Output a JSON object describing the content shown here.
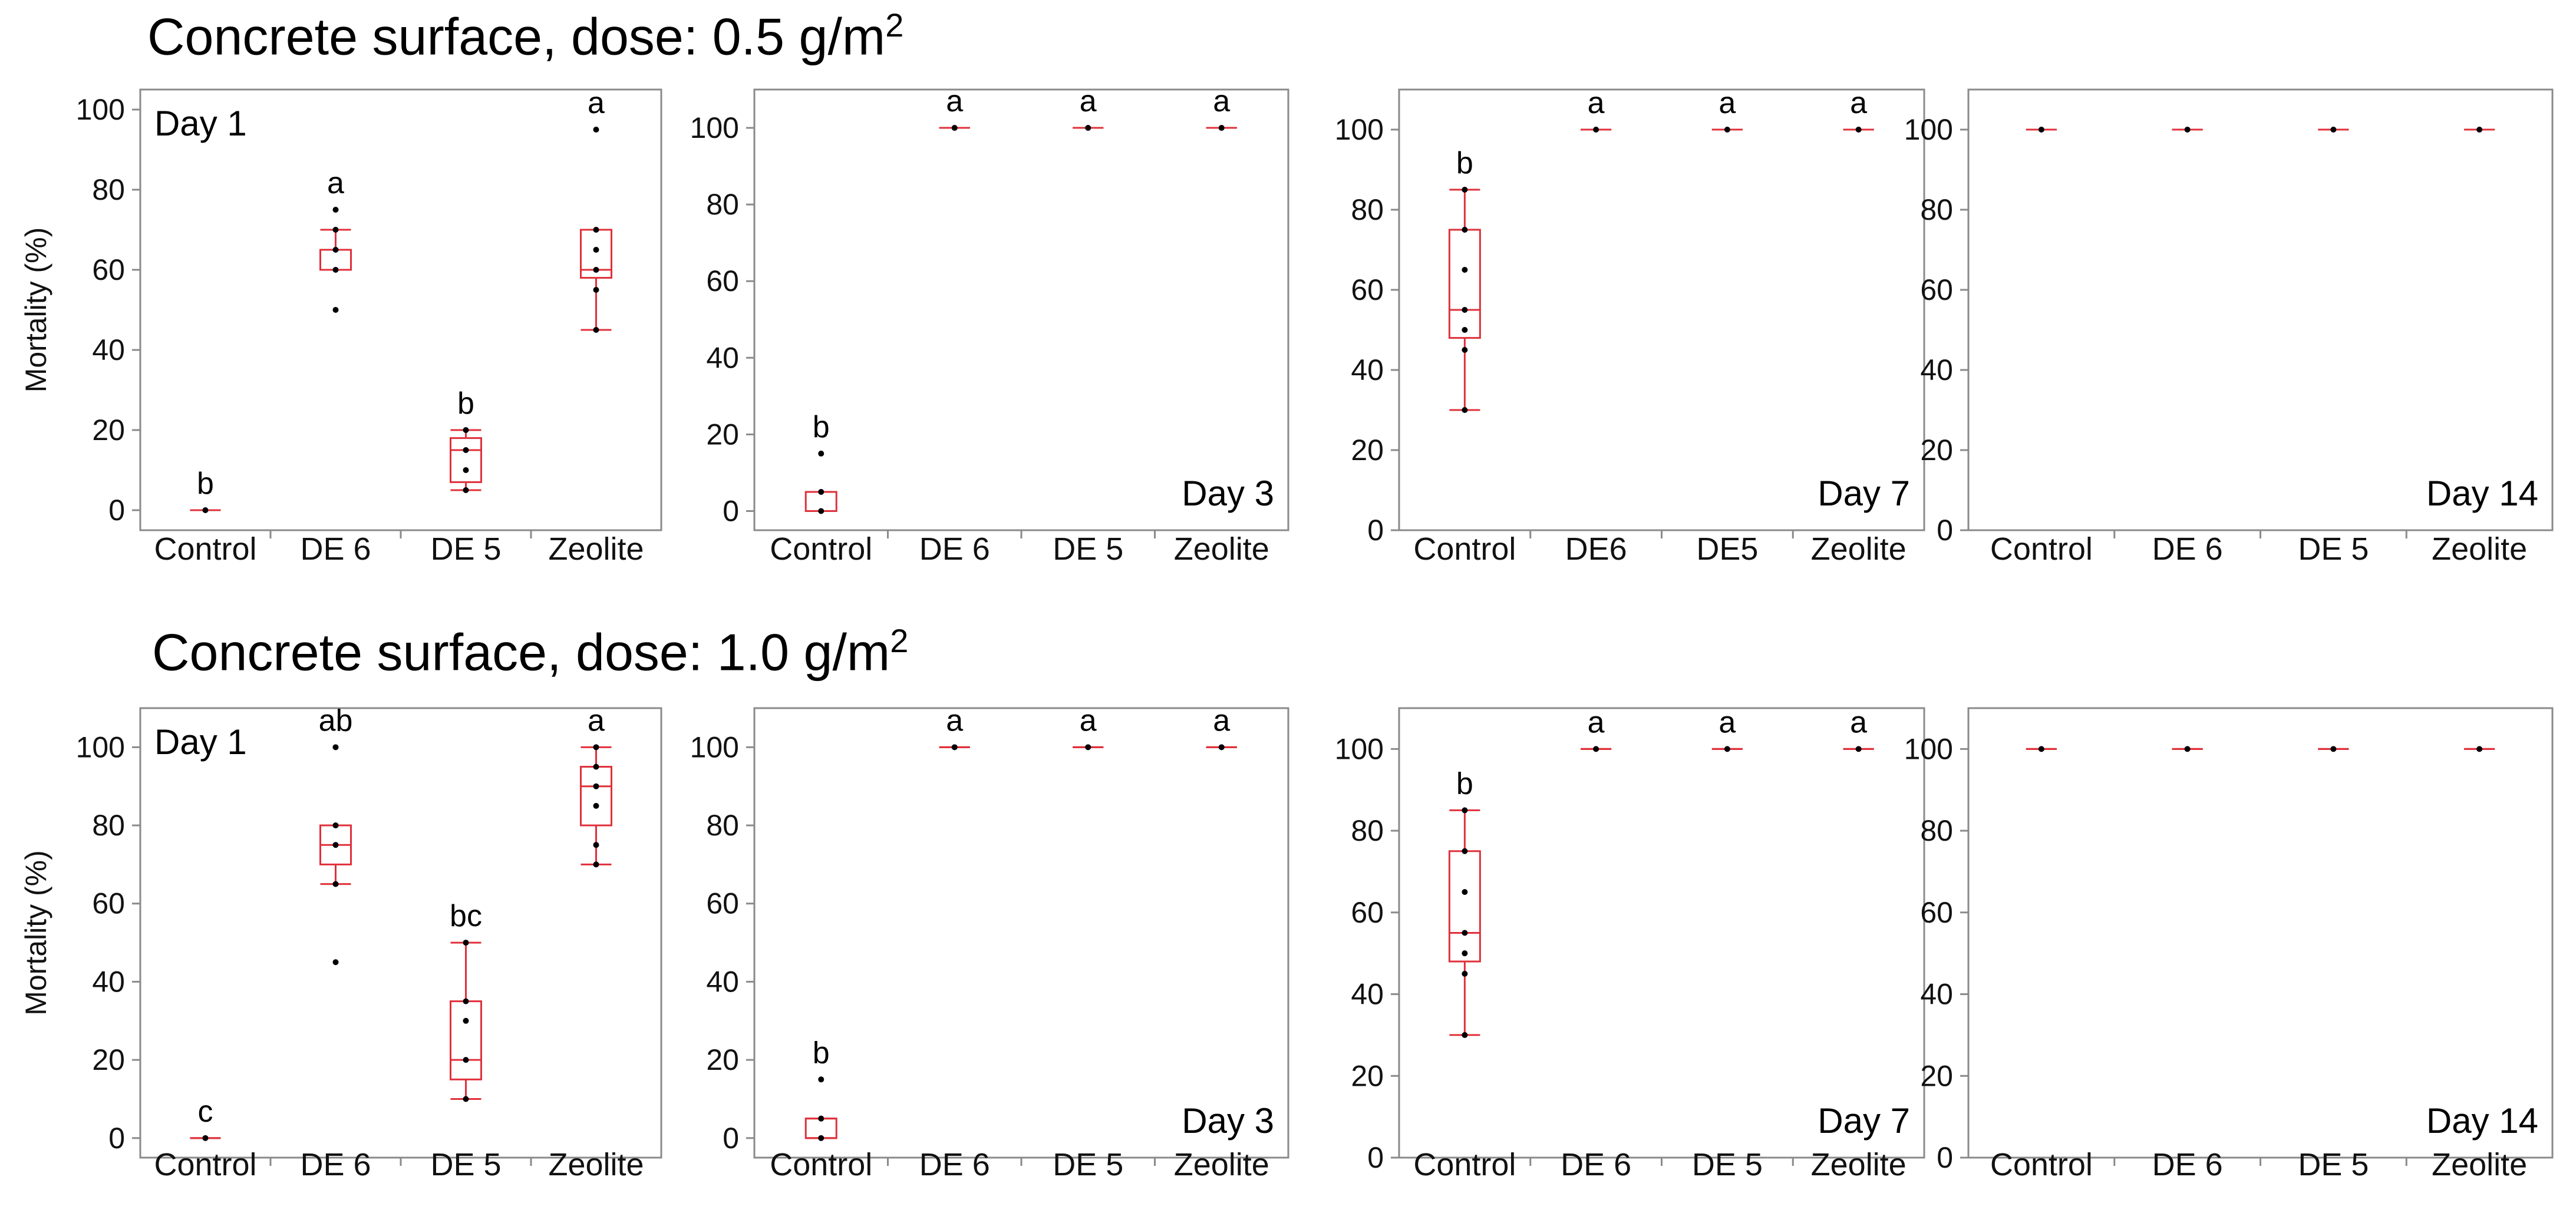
{
  "rows": [
    {
      "title_text": "Concrete surface, dose: 0.5 g/m",
      "title_sup": "2"
    },
    {
      "title_text": "Concrete surface, dose: 1.0 g/m",
      "title_sup": "2"
    }
  ],
  "colors": {
    "box": "#e0303a",
    "point": "#000000",
    "axis": "#8a8a8a",
    "text": "#111111"
  },
  "chart_data": [
    {
      "type": "box",
      "row": 0,
      "panel": 0,
      "day_label": "Day 1",
      "day_pos": "top-left",
      "ylabel": "Mortality (%)",
      "ylim": [
        -5,
        105
      ],
      "yticks": [
        0,
        20,
        40,
        60,
        80,
        100
      ],
      "categories": [
        "Control",
        "DE 6",
        "DE 5",
        "Zeolite"
      ],
      "boxes": [
        {
          "letter": "b",
          "min": 0,
          "q1": 0,
          "median": 0,
          "q3": 0,
          "max": 0,
          "points": [
            0
          ]
        },
        {
          "letter": "a",
          "min": 60,
          "q1": 60,
          "median": 65,
          "q3": 65,
          "max": 70,
          "points": [
            50,
            60,
            65,
            70,
            75
          ]
        },
        {
          "letter": "b",
          "min": 5,
          "q1": 7,
          "median": 15,
          "q3": 18,
          "max": 20,
          "points": [
            5,
            10,
            15,
            20
          ]
        },
        {
          "letter": "a",
          "min": 45,
          "q1": 58,
          "median": 60,
          "q3": 70,
          "max": 70,
          "points": [
            45,
            55,
            60,
            65,
            70,
            95
          ]
        }
      ]
    },
    {
      "type": "box",
      "row": 0,
      "panel": 1,
      "day_label": "Day 3",
      "day_pos": "bottom-right",
      "ylabel": "",
      "ylim": [
        -5,
        110
      ],
      "yticks": [
        0,
        20,
        40,
        60,
        80,
        100
      ],
      "categories": [
        "Control",
        "DE 6",
        "DE 5",
        "Zeolite"
      ],
      "boxes": [
        {
          "letter": "b",
          "min": 0,
          "q1": 0,
          "median": 0,
          "q3": 5,
          "max": 5,
          "points": [
            0,
            5,
            15
          ]
        },
        {
          "letter": "a",
          "min": 100,
          "q1": 100,
          "median": 100,
          "q3": 100,
          "max": 100,
          "points": [
            100
          ]
        },
        {
          "letter": "a",
          "min": 100,
          "q1": 100,
          "median": 100,
          "q3": 100,
          "max": 100,
          "points": [
            100
          ]
        },
        {
          "letter": "a",
          "min": 100,
          "q1": 100,
          "median": 100,
          "q3": 100,
          "max": 100,
          "points": [
            100
          ]
        }
      ]
    },
    {
      "type": "box",
      "row": 0,
      "panel": 2,
      "day_label": "Day 7",
      "day_pos": "bottom-right",
      "ylabel": "",
      "ylim": [
        0,
        110
      ],
      "yticks": [
        0,
        20,
        40,
        60,
        80,
        100
      ],
      "categories": [
        "Control",
        "DE6",
        "DE5",
        "Zeolite"
      ],
      "boxes": [
        {
          "letter": "b",
          "min": 30,
          "q1": 48,
          "median": 55,
          "q3": 75,
          "max": 85,
          "points": [
            30,
            45,
            50,
            55,
            65,
            75,
            85
          ]
        },
        {
          "letter": "a",
          "min": 100,
          "q1": 100,
          "median": 100,
          "q3": 100,
          "max": 100,
          "points": [
            100
          ]
        },
        {
          "letter": "a",
          "min": 100,
          "q1": 100,
          "median": 100,
          "q3": 100,
          "max": 100,
          "points": [
            100
          ]
        },
        {
          "letter": "a",
          "min": 100,
          "q1": 100,
          "median": 100,
          "q3": 100,
          "max": 100,
          "points": [
            100
          ]
        }
      ]
    },
    {
      "type": "box",
      "row": 0,
      "panel": 3,
      "day_label": "Day 14",
      "day_pos": "bottom-right",
      "ylabel": "",
      "ylim": [
        0,
        110
      ],
      "yticks": [
        0,
        20,
        40,
        60,
        80,
        100
      ],
      "categories": [
        "Control",
        "DE 6",
        "DE 5",
        "Zeolite"
      ],
      "boxes": [
        {
          "letter": "",
          "min": 100,
          "q1": 100,
          "median": 100,
          "q3": 100,
          "max": 100,
          "points": [
            100
          ]
        },
        {
          "letter": "",
          "min": 100,
          "q1": 100,
          "median": 100,
          "q3": 100,
          "max": 100,
          "points": [
            100
          ]
        },
        {
          "letter": "",
          "min": 100,
          "q1": 100,
          "median": 100,
          "q3": 100,
          "max": 100,
          "points": [
            100
          ]
        },
        {
          "letter": "",
          "min": 100,
          "q1": 100,
          "median": 100,
          "q3": 100,
          "max": 100,
          "points": [
            100
          ]
        }
      ]
    },
    {
      "type": "box",
      "row": 1,
      "panel": 0,
      "day_label": "Day 1",
      "day_pos": "top-left",
      "ylabel": "Mortality (%)",
      "ylim": [
        -5,
        110
      ],
      "yticks": [
        0,
        20,
        40,
        60,
        80,
        100
      ],
      "categories": [
        "Control",
        "DE 6",
        "DE 5",
        "Zeolite"
      ],
      "boxes": [
        {
          "letter": "c",
          "min": 0,
          "q1": 0,
          "median": 0,
          "q3": 0,
          "max": 0,
          "points": [
            0
          ]
        },
        {
          "letter": "ab",
          "min": 65,
          "q1": 70,
          "median": 75,
          "q3": 80,
          "max": 80,
          "points": [
            45,
            65,
            75,
            80,
            100
          ]
        },
        {
          "letter": "bc",
          "min": 10,
          "q1": 15,
          "median": 20,
          "q3": 35,
          "max": 50,
          "points": [
            10,
            20,
            30,
            35,
            50
          ]
        },
        {
          "letter": "a",
          "min": 70,
          "q1": 80,
          "median": 90,
          "q3": 95,
          "max": 100,
          "points": [
            70,
            75,
            85,
            90,
            95,
            100
          ]
        }
      ]
    },
    {
      "type": "box",
      "row": 1,
      "panel": 1,
      "day_label": "Day 3",
      "day_pos": "bottom-right",
      "ylabel": "",
      "ylim": [
        -5,
        110
      ],
      "yticks": [
        0,
        20,
        40,
        60,
        80,
        100
      ],
      "categories": [
        "Control",
        "DE 6",
        "DE 5",
        "Zeolite"
      ],
      "boxes": [
        {
          "letter": "b",
          "min": 0,
          "q1": 0,
          "median": 0,
          "q3": 5,
          "max": 5,
          "points": [
            0,
            5,
            15
          ]
        },
        {
          "letter": "a",
          "min": 100,
          "q1": 100,
          "median": 100,
          "q3": 100,
          "max": 100,
          "points": [
            100
          ]
        },
        {
          "letter": "a",
          "min": 100,
          "q1": 100,
          "median": 100,
          "q3": 100,
          "max": 100,
          "points": [
            100
          ]
        },
        {
          "letter": "a",
          "min": 100,
          "q1": 100,
          "median": 100,
          "q3": 100,
          "max": 100,
          "points": [
            100
          ]
        }
      ]
    },
    {
      "type": "box",
      "row": 1,
      "panel": 2,
      "day_label": "Day 7",
      "day_pos": "bottom-right",
      "ylabel": "",
      "ylim": [
        0,
        110
      ],
      "yticks": [
        0,
        20,
        40,
        60,
        80,
        100
      ],
      "categories": [
        "Control",
        "DE 6",
        "DE 5",
        "Zeolite"
      ],
      "boxes": [
        {
          "letter": "b",
          "min": 30,
          "q1": 48,
          "median": 55,
          "q3": 75,
          "max": 85,
          "points": [
            30,
            45,
            50,
            55,
            65,
            75,
            85
          ]
        },
        {
          "letter": "a",
          "min": 100,
          "q1": 100,
          "median": 100,
          "q3": 100,
          "max": 100,
          "points": [
            100
          ]
        },
        {
          "letter": "a",
          "min": 100,
          "q1": 100,
          "median": 100,
          "q3": 100,
          "max": 100,
          "points": [
            100
          ]
        },
        {
          "letter": "a",
          "min": 100,
          "q1": 100,
          "median": 100,
          "q3": 100,
          "max": 100,
          "points": [
            100
          ]
        }
      ]
    },
    {
      "type": "box",
      "row": 1,
      "panel": 3,
      "day_label": "Day 14",
      "day_pos": "bottom-right",
      "ylabel": "",
      "ylim": [
        0,
        110
      ],
      "yticks": [
        0,
        20,
        40,
        60,
        80,
        100
      ],
      "categories": [
        "Control",
        "DE 6",
        "DE 5",
        "Zeolite"
      ],
      "boxes": [
        {
          "letter": "",
          "min": 100,
          "q1": 100,
          "median": 100,
          "q3": 100,
          "max": 100,
          "points": [
            100
          ]
        },
        {
          "letter": "",
          "min": 100,
          "q1": 100,
          "median": 100,
          "q3": 100,
          "max": 100,
          "points": [
            100
          ]
        },
        {
          "letter": "",
          "min": 100,
          "q1": 100,
          "median": 100,
          "q3": 100,
          "max": 100,
          "points": [
            100
          ]
        },
        {
          "letter": "",
          "min": 100,
          "q1": 100,
          "median": 100,
          "q3": 100,
          "max": 100,
          "points": [
            100
          ]
        }
      ]
    }
  ]
}
